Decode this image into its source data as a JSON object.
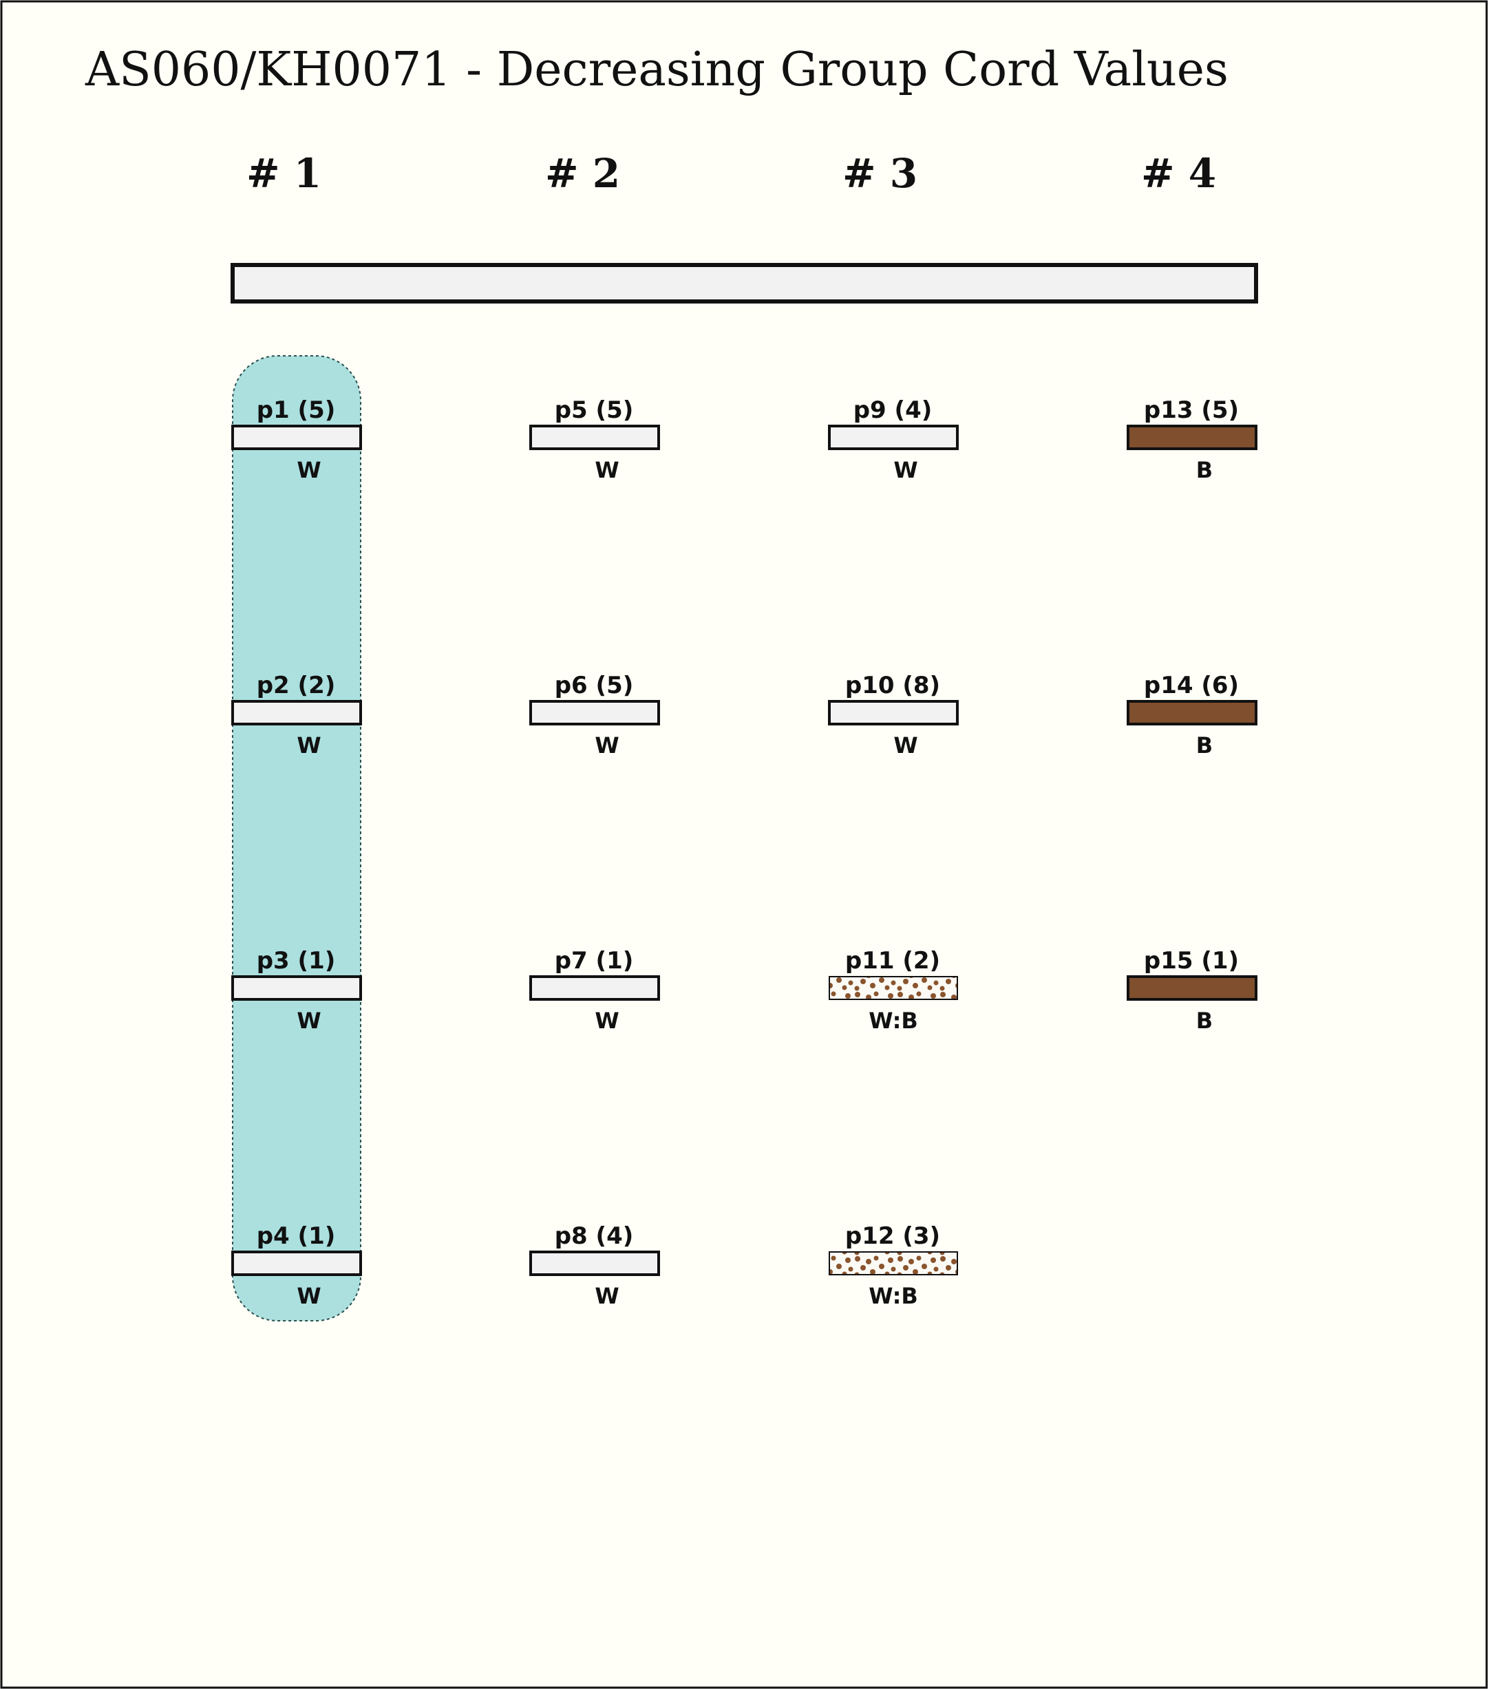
{
  "title": "AS060/KH0071 - Decreasing Group Cord Values",
  "colors": {
    "background": "#fffff7",
    "highlight": "#abe0df",
    "white_cord": "#f2f2f2",
    "brown_cord": "#7f4f2e",
    "speckle": "#8a542d",
    "border": "#111111"
  },
  "groups": [
    {
      "label": "# 1",
      "highlighted": true,
      "cords": [
        {
          "name": "p1",
          "value": "(5)",
          "color_code": "W",
          "fill": "white"
        },
        {
          "name": "p2",
          "value": "(2)",
          "color_code": "W",
          "fill": "white"
        },
        {
          "name": "p3",
          "value": "(1)",
          "color_code": "W",
          "fill": "white"
        },
        {
          "name": "p4",
          "value": "(1)",
          "color_code": "W",
          "fill": "white"
        }
      ]
    },
    {
      "label": "# 2",
      "highlighted": false,
      "cords": [
        {
          "name": "p5",
          "value": "(5)",
          "color_code": "W",
          "fill": "white"
        },
        {
          "name": "p6",
          "value": "(5)",
          "color_code": "W",
          "fill": "white"
        },
        {
          "name": "p7",
          "value": "(1)",
          "color_code": "W",
          "fill": "white"
        },
        {
          "name": "p8",
          "value": "(4)",
          "color_code": "W",
          "fill": "white"
        }
      ]
    },
    {
      "label": "# 3",
      "highlighted": false,
      "cords": [
        {
          "name": "p9",
          "value": "(4)",
          "color_code": "W",
          "fill": "white"
        },
        {
          "name": "p10",
          "value": "(8)",
          "color_code": "W",
          "fill": "white"
        },
        {
          "name": "p11",
          "value": "(2)",
          "color_code": "W:B",
          "fill": "speckled"
        },
        {
          "name": "p12",
          "value": "(3)",
          "color_code": "W:B",
          "fill": "speckled"
        }
      ]
    },
    {
      "label": "# 4",
      "highlighted": false,
      "cords": [
        {
          "name": "p13",
          "value": "(5)",
          "color_code": "B",
          "fill": "brown"
        },
        {
          "name": "p14",
          "value": "(6)",
          "color_code": "B",
          "fill": "brown"
        },
        {
          "name": "p15",
          "value": "(1)",
          "color_code": "B",
          "fill": "brown"
        }
      ]
    }
  ]
}
